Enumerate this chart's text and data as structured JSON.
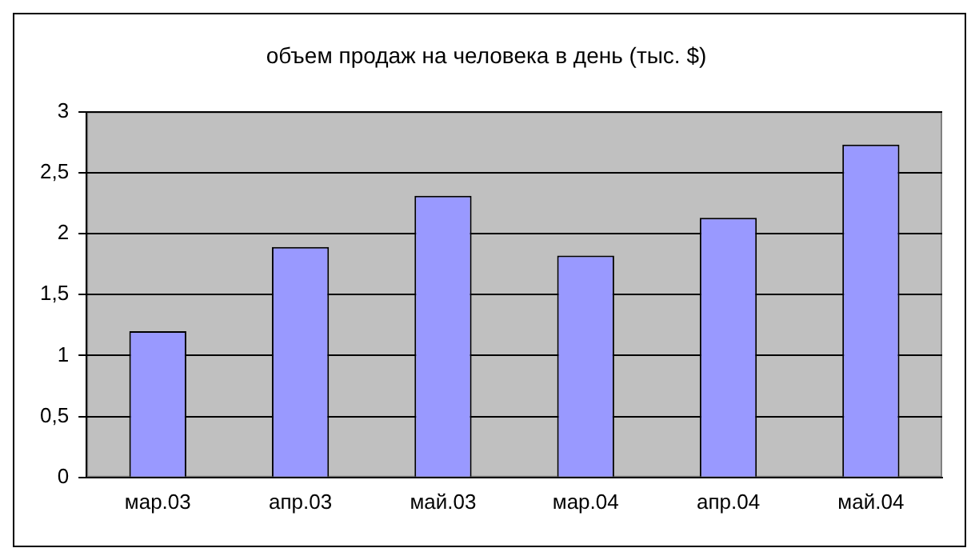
{
  "chart_data": {
    "type": "bar",
    "title": "объем продаж на человека в день (тыс. $)",
    "categories": [
      "мар.03",
      "апр.03",
      "май.03",
      "мар.04",
      "апр.04",
      "май.04"
    ],
    "values": [
      1.2,
      1.89,
      2.31,
      1.82,
      2.13,
      2.73
    ],
    "color": "#9999ff",
    "ylim": [
      0,
      3
    ],
    "yticks": [
      {
        "value": 0,
        "label": "0"
      },
      {
        "value": 0.5,
        "label": "0,5"
      },
      {
        "value": 1,
        "label": "1"
      },
      {
        "value": 1.5,
        "label": "1,5"
      },
      {
        "value": 2,
        "label": "2"
      },
      {
        "value": 2.5,
        "label": "2,5"
      },
      {
        "value": 3,
        "label": "3"
      }
    ],
    "grid": "y",
    "legend": false
  }
}
